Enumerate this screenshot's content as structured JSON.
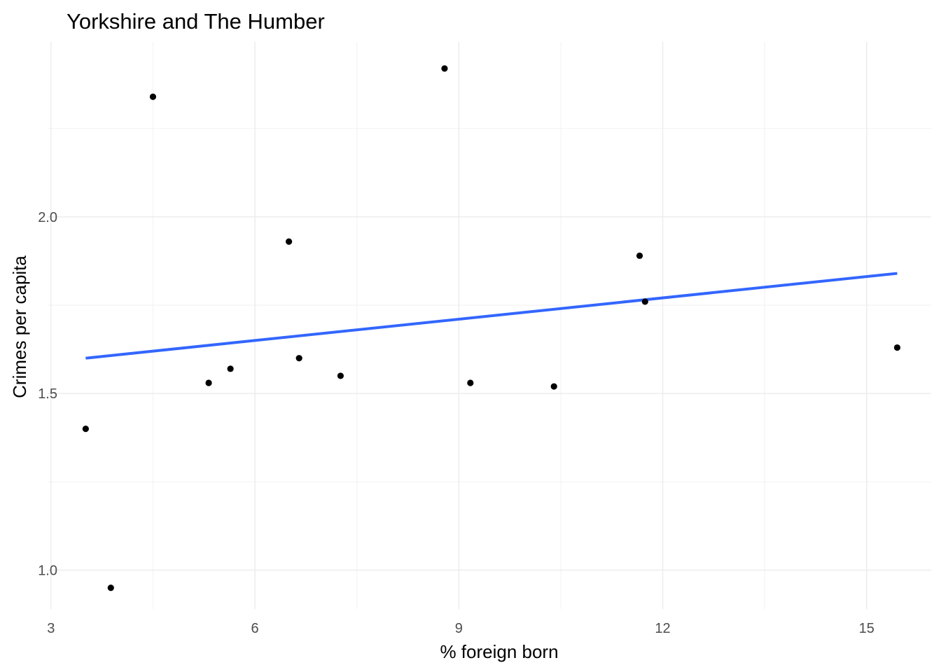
{
  "chart_data": {
    "type": "scatter",
    "title": "Yorkshire and The Humber",
    "xlabel": "% foreign born",
    "ylabel": "Crimes per capita",
    "xlim": [
      2.95,
      15.95
    ],
    "ylim": [
      0.89,
      2.495
    ],
    "x_ticks": [
      3,
      6,
      9,
      12,
      15
    ],
    "x_tick_labels": [
      "3",
      "6",
      "9",
      "12",
      "15"
    ],
    "x_minor_ticks": [
      4.5,
      7.5,
      10.5,
      13.5
    ],
    "y_ticks": [
      1.0,
      1.5,
      2.0
    ],
    "y_tick_labels": [
      "1.0",
      "1.5",
      "2.0"
    ],
    "y_minor_ticks": [
      1.25,
      1.75,
      2.25
    ],
    "grid": true,
    "points": [
      {
        "x": 3.51,
        "y": 1.4
      },
      {
        "x": 3.88,
        "y": 0.95
      },
      {
        "x": 4.5,
        "y": 2.34
      },
      {
        "x": 5.32,
        "y": 1.53
      },
      {
        "x": 5.64,
        "y": 1.57
      },
      {
        "x": 6.5,
        "y": 1.93
      },
      {
        "x": 6.65,
        "y": 1.6
      },
      {
        "x": 7.26,
        "y": 1.55
      },
      {
        "x": 8.79,
        "y": 2.42
      },
      {
        "x": 9.17,
        "y": 1.53
      },
      {
        "x": 10.4,
        "y": 1.52
      },
      {
        "x": 11.66,
        "y": 1.89
      },
      {
        "x": 11.74,
        "y": 1.76
      },
      {
        "x": 15.45,
        "y": 1.63
      }
    ],
    "trend_line": {
      "x": [
        3.51,
        15.45
      ],
      "y": [
        1.6,
        1.84
      ],
      "color": "#3366FF"
    },
    "point_color": "#000000"
  }
}
